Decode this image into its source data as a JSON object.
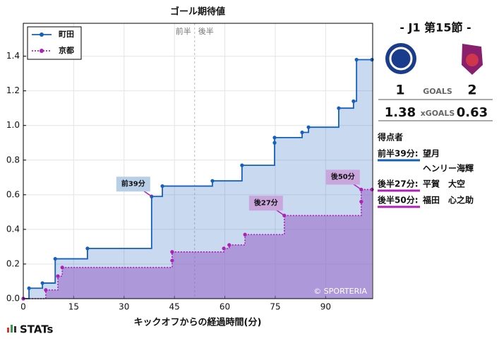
{
  "chart_data": {
    "type": "step",
    "title": "ゴール期待値",
    "x_label": "キックオフからの経過時間(分)",
    "xlim": [
      0,
      104
    ],
    "ylim": [
      0,
      1.59
    ],
    "xticks": [
      0,
      15,
      30,
      45,
      60,
      75,
      90
    ],
    "yticks": [
      {
        "value": 0,
        "label": "0.0"
      },
      0.2,
      0.4,
      0.6,
      0.8,
      {
        "value": 1,
        "label": "1.0"
      },
      1.2,
      1.4
    ],
    "grid": true,
    "legend": "upper left",
    "halftime": {
      "x": 51,
      "labels": [
        "前半",
        "後半"
      ]
    },
    "series": [
      {
        "name": "町田",
        "color": "#1560bd",
        "fill": "rgba(60,120,200,0.28)",
        "line": "solid",
        "x": [
          0,
          1.7,
          5.7,
          9.5,
          19.1,
          38.2,
          41.4,
          56.3,
          65.1,
          74.8,
          74.8,
          83,
          84.9,
          93.9,
          98.3,
          99.2,
          103.8
        ],
        "values": [
          0,
          0.06,
          0.09,
          0.23,
          0.29,
          0.59,
          0.65,
          0.68,
          0.77,
          0.9,
          0.93,
          0.96,
          0.99,
          1.1,
          1.14,
          1.38,
          1.38
        ]
      },
      {
        "name": "京都",
        "color": "#b01fb8",
        "fill": "rgba(150,100,200,0.55)",
        "line": "dotted",
        "x": [
          0,
          6.7,
          10.3,
          11.6,
          44.3,
          44.3,
          59.7,
          61.3,
          66,
          77.7,
          100.6,
          100.6,
          103.8
        ],
        "values": [
          0,
          0.05,
          0.13,
          0.18,
          0.22,
          0.27,
          0.29,
          0.31,
          0.37,
          0.48,
          0.56,
          0.63,
          0.63
        ]
      }
    ],
    "annotations": [
      {
        "text": "前39分",
        "x": 38.2,
        "y": 0.59,
        "color": "#b8cfe8"
      },
      {
        "text": "後27分",
        "x": 77.7,
        "y": 0.48,
        "color": "#c9a6dc"
      },
      {
        "text": "後50分",
        "x": 100.6,
        "y": 0.63,
        "color": "#c9a6dc"
      }
    ],
    "credit": "© SPORTERIA"
  },
  "panel": {
    "round": "- J1 第15節 -",
    "home_goals": 1,
    "away_goals": 2,
    "goals_label": "GOALS",
    "home_xg": 1.38,
    "away_xg": 0.63,
    "xg_label": "xGOALS",
    "scorers_title": "得点者",
    "scorers": [
      {
        "time": "前半39分:",
        "names": [
          "望月",
          "ヘンリー海輝"
        ]
      },
      {
        "time": "後半27分:",
        "names": [
          "平賀　大空"
        ]
      },
      {
        "time": "後半50分:",
        "names": [
          "福田　心之助"
        ]
      }
    ]
  },
  "brand": "STATs"
}
